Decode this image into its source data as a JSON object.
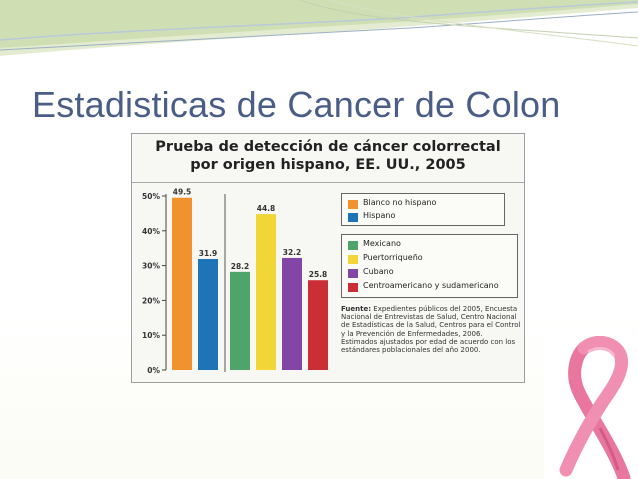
{
  "slide": {
    "title": "Estadisticas de Cancer de Colon"
  },
  "colors": {
    "title": "#4a5d86",
    "blanco": "#f0922e",
    "hispano": "#1f73b7",
    "mexicano": "#4fa469",
    "puertorriqueno": "#f2d536",
    "cubano": "#8446a6",
    "centro": "#c92f35",
    "ribbon": "#e8769e"
  },
  "chart_data": {
    "type": "bar",
    "title": "Prueba de detección de cáncer colorrectal por origen hispano, EE. UU., 2005",
    "title_line1": "Prueba de detección de cáncer colorrectal",
    "title_line2": "por origen hispano, EE. UU., 2005",
    "ylim": [
      0,
      50
    ],
    "yticks": [
      "0%",
      "10%",
      "20%",
      "30%",
      "40%",
      "50%"
    ],
    "grid": false,
    "series": [
      {
        "name": "Blanco no hispano",
        "value": 49.5,
        "label": "49.5",
        "color": "#f0922e",
        "group": 1
      },
      {
        "name": "Hispano",
        "value": 31.9,
        "label": "31.9",
        "color": "#1f73b7",
        "group": 1
      },
      {
        "name": "Mexicano",
        "value": 28.2,
        "label": "28.2",
        "color": "#4fa469",
        "group": 2
      },
      {
        "name": "Puertorriqueño",
        "value": 44.8,
        "label": "44.8",
        "color": "#f2d536",
        "group": 2
      },
      {
        "name": "Cubano",
        "value": 32.2,
        "label": "32.2",
        "color": "#8446a6",
        "group": 2
      },
      {
        "name": "Centroamericano y sudamericano",
        "value": 25.8,
        "label": "25.8",
        "color": "#c92f35",
        "group": 2
      }
    ],
    "legend_placement": "right",
    "source_label": "Fuente:",
    "source_text": " Expedientes públicos del 2005, Encuesta Nacional de Entrevistas de Salud, Centro Nacional de Estadísticas de la Salud, Centros para el Control y la Prevención de Enfermedades, 2006. Estimados ajustados por edad de acuerdo con los estándares poblacionales del año 2000."
  }
}
